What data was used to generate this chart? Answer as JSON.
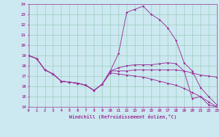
{
  "xlabel": "Windchill (Refroidissement éolien,°C)",
  "bg_color": "#cce8f0",
  "grid_color": "#99ccbb",
  "line_color": "#993399",
  "ylim": [
    14,
    24
  ],
  "xlim": [
    0,
    23
  ],
  "yticks": [
    14,
    15,
    16,
    17,
    18,
    19,
    20,
    21,
    22,
    23,
    24
  ],
  "xticks": [
    0,
    1,
    2,
    3,
    4,
    5,
    6,
    7,
    8,
    9,
    10,
    11,
    12,
    13,
    14,
    15,
    16,
    17,
    18,
    19,
    20,
    21,
    22,
    23
  ],
  "series": [
    {
      "x": [
        0,
        1,
        2,
        3,
        4,
        5,
        6,
        7,
        8,
        9,
        10,
        11,
        12,
        13,
        14,
        15,
        16,
        17,
        18,
        19,
        20,
        21,
        22,
        23
      ],
      "y": [
        19.0,
        18.7,
        17.6,
        17.2,
        16.5,
        16.4,
        16.3,
        16.1,
        15.6,
        16.2,
        17.5,
        17.5,
        17.5,
        17.6,
        17.6,
        17.6,
        17.6,
        17.6,
        17.6,
        17.5,
        17.3,
        17.1,
        17.0,
        16.9
      ]
    },
    {
      "x": [
        0,
        1,
        2,
        3,
        4,
        5,
        6,
        7,
        8,
        9,
        10,
        11,
        12,
        13,
        14,
        15,
        16,
        17,
        18,
        19,
        20,
        21,
        22,
        23
      ],
      "y": [
        19.0,
        18.7,
        17.6,
        17.2,
        16.5,
        16.4,
        16.3,
        16.1,
        15.6,
        16.2,
        17.5,
        17.8,
        18.0,
        18.1,
        18.1,
        18.1,
        18.2,
        18.3,
        18.2,
        17.5,
        14.8,
        15.0,
        14.2,
        14.0
      ]
    },
    {
      "x": [
        0,
        1,
        2,
        3,
        4,
        5,
        6,
        7,
        8,
        9,
        10,
        11,
        12,
        13,
        14,
        15,
        16,
        17,
        18,
        19,
        20,
        21,
        22,
        23
      ],
      "y": [
        19.0,
        18.7,
        17.6,
        17.2,
        16.5,
        16.4,
        16.3,
        16.1,
        15.6,
        16.2,
        17.5,
        19.2,
        23.2,
        23.5,
        23.8,
        23.0,
        22.5,
        21.7,
        20.5,
        18.3,
        17.5,
        15.9,
        15.0,
        14.2
      ]
    },
    {
      "x": [
        0,
        1,
        2,
        3,
        4,
        5,
        6,
        7,
        8,
        9,
        10,
        11,
        12,
        13,
        14,
        15,
        16,
        17,
        18,
        19,
        20,
        21,
        22,
        23
      ],
      "y": [
        19.0,
        18.7,
        17.6,
        17.2,
        16.5,
        16.4,
        16.3,
        16.1,
        15.6,
        16.2,
        17.3,
        17.2,
        17.1,
        17.0,
        16.9,
        16.7,
        16.5,
        16.3,
        16.1,
        15.8,
        15.4,
        15.0,
        14.5,
        14.0
      ]
    }
  ]
}
